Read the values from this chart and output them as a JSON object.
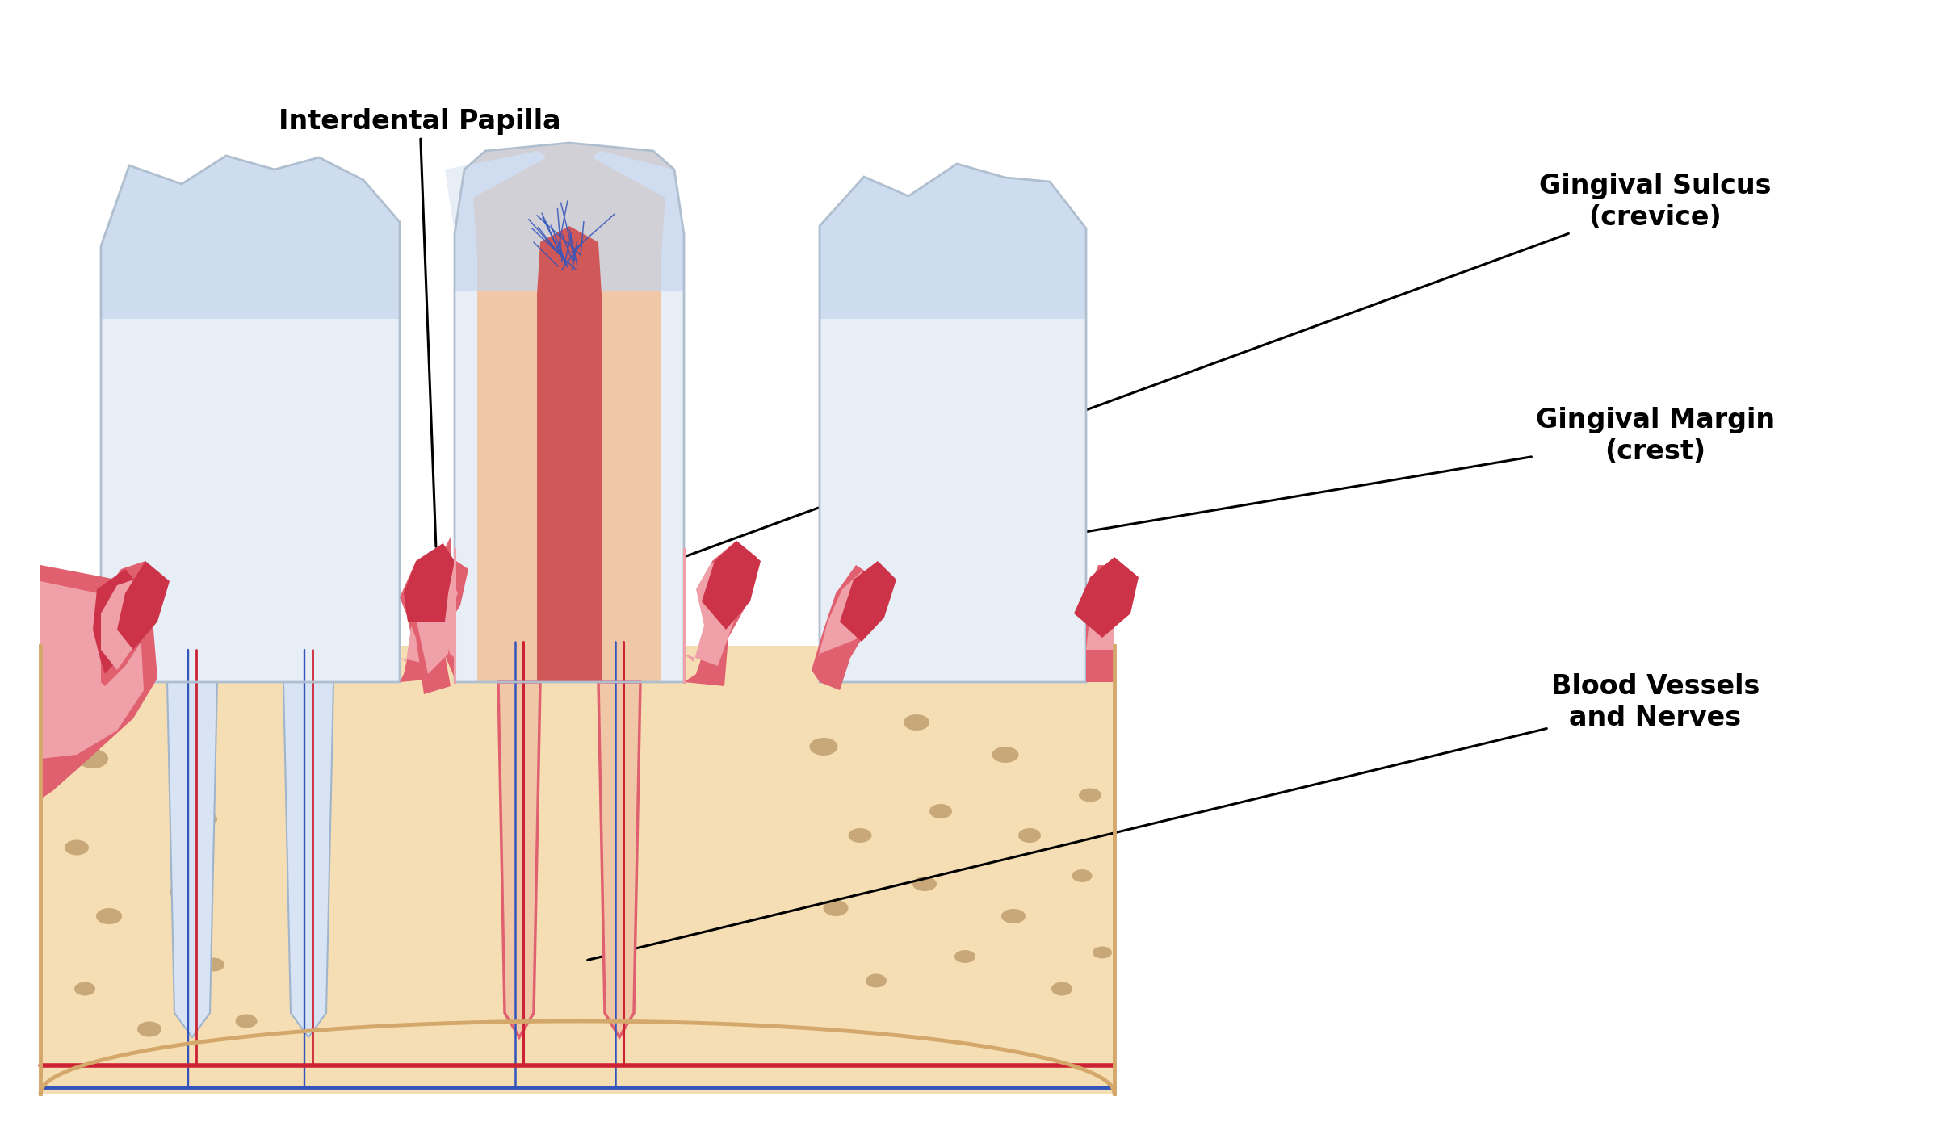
{
  "bg_color": "#ffffff",
  "bone_color": "#F5DEB3",
  "bone_outline": "#D4A76A",
  "bone_spot_color": "#C8A878",
  "gum_outer_color": "#E06070",
  "gum_inner_color": "#EFA0A8",
  "gum_dark_color": "#CC3348",
  "tooth_white": "#E8EEF5",
  "tooth_shine": "#C5D5EE",
  "tooth_outline": "#B0BFCF",
  "dentin_color": "#F0C8A8",
  "pulp_color": "#D05858",
  "nerve_red": "#CC2233",
  "nerve_blue": "#3355BB",
  "label_color": "#000000",
  "line_color": "#000000",
  "figure_width": 24.0,
  "figure_height": 13.9,
  "label_interdental": "Interdental Papilla",
  "label_sulcus": "Gingival Sulcus\n(crevice)",
  "label_margin": "Gingival Margin\n(crest)",
  "label_vessels": "Blood Vessels\nand Nerves"
}
